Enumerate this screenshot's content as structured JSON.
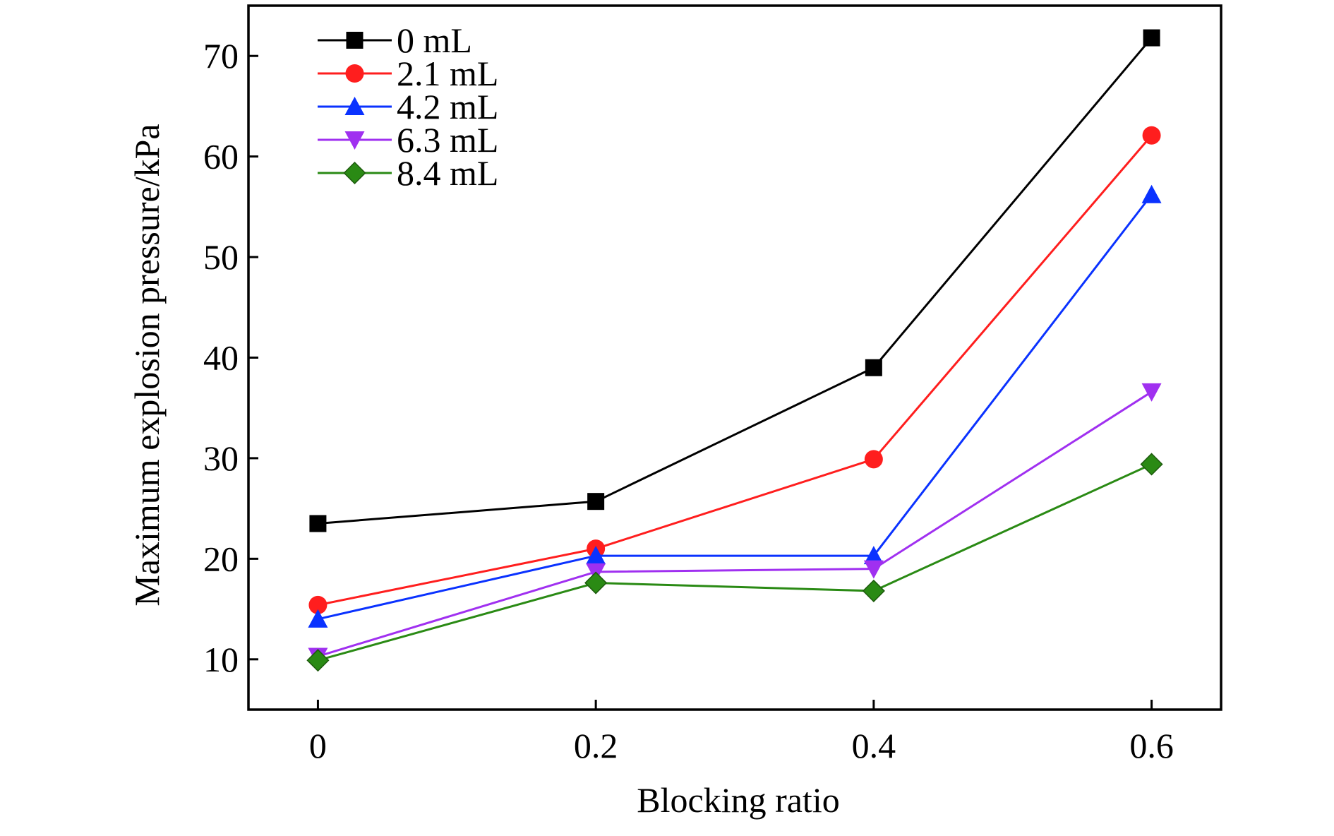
{
  "chart_data": {
    "type": "line",
    "xlabel": "Blocking ratio",
    "ylabel": "Maximum explosion pressure/kPa",
    "x": [
      0,
      0.2,
      0.4,
      0.6
    ],
    "x_tick_labels": [
      "0",
      "0.2",
      "0.4",
      "0.6"
    ],
    "xlim": [
      -0.05,
      0.65
    ],
    "y_ticks": [
      10,
      20,
      30,
      40,
      50,
      60,
      70
    ],
    "y_tick_labels": [
      "10",
      "20",
      "30",
      "40",
      "50",
      "60",
      "70"
    ],
    "ylim": [
      5,
      75
    ],
    "grid": false,
    "legend_position": "top-left",
    "series": [
      {
        "name": "0 mL",
        "color": "#000000",
        "marker": "square",
        "values": [
          23.5,
          25.7,
          39.0,
          71.8
        ]
      },
      {
        "name": "2.1 mL",
        "color": "#ff1e1e",
        "marker": "circle",
        "values": [
          15.4,
          21.0,
          29.9,
          62.1
        ]
      },
      {
        "name": "4.2 mL",
        "color": "#0a32ff",
        "marker": "triangle-up",
        "values": [
          14.0,
          20.3,
          20.3,
          56.2
        ]
      },
      {
        "name": "6.3 mL",
        "color": "#a030f0",
        "marker": "triangle-down",
        "values": [
          10.3,
          18.7,
          19.0,
          36.6
        ]
      },
      {
        "name": "8.4 mL",
        "color": "#2a8a14",
        "marker": "diamond",
        "values": [
          9.9,
          17.6,
          16.8,
          29.4
        ]
      }
    ]
  }
}
